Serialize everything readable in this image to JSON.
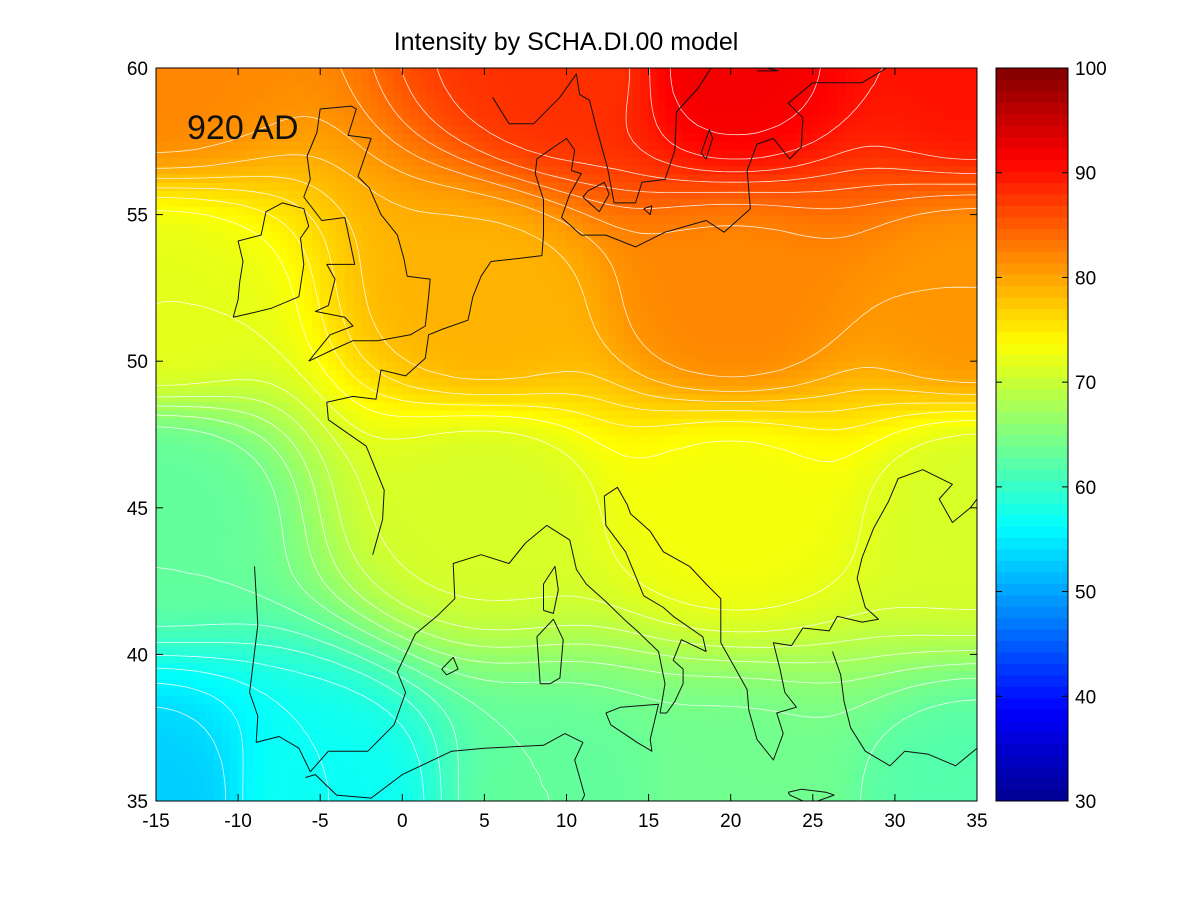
{
  "title": "Intensity by SCHA.DI.00 model",
  "annotation": "920 AD",
  "colors": {
    "jet": [
      "#00008f",
      "#0000ff",
      "#0080ff",
      "#00ffff",
      "#80ff80",
      "#ffff00",
      "#ff8000",
      "#ff0000",
      "#800000"
    ]
  },
  "chart_data": {
    "type": "heatmap",
    "title": "Intensity by SCHA.DI.00 model",
    "xlim": [
      -15,
      35
    ],
    "ylim": [
      35,
      60
    ],
    "x_ticks": [
      -15,
      -10,
      -5,
      0,
      5,
      10,
      15,
      20,
      25,
      30,
      35
    ],
    "y_ticks": [
      35,
      40,
      45,
      50,
      55,
      60
    ],
    "colorbar": {
      "range": [
        30,
        100
      ],
      "ticks": [
        30,
        40,
        50,
        60,
        70,
        80,
        90,
        100
      ]
    },
    "contour_step": 1.5,
    "field": {
      "description_points": [
        {
          "lon": -15,
          "lat": 35,
          "value": 53
        },
        {
          "lon": -5,
          "lat": 35,
          "value": 57
        },
        {
          "lon": 10,
          "lat": 35,
          "value": 63
        },
        {
          "lon": 20,
          "lat": 35,
          "value": 64
        },
        {
          "lon": 35,
          "lat": 35,
          "value": 62
        },
        {
          "lon": -15,
          "lat": 45,
          "value": 63
        },
        {
          "lon": 5,
          "lat": 45,
          "value": 71
        },
        {
          "lon": 20,
          "lat": 45,
          "value": 73
        },
        {
          "lon": 35,
          "lat": 45,
          "value": 71
        },
        {
          "lon": -15,
          "lat": 52,
          "value": 72
        },
        {
          "lon": 5,
          "lat": 52,
          "value": 79
        },
        {
          "lon": 20,
          "lat": 52,
          "value": 82
        },
        {
          "lon": 35,
          "lat": 52,
          "value": 81
        },
        {
          "lon": -15,
          "lat": 60,
          "value": 82
        },
        {
          "lon": 10,
          "lat": 60,
          "value": 88
        },
        {
          "lon": 20,
          "lat": 60,
          "value": 92
        },
        {
          "lon": 35,
          "lat": 60,
          "value": 90
        }
      ]
    },
    "coastlines": [
      {
        "name": "ireland",
        "lonlat": [
          [
            -10.3,
            51.5
          ],
          [
            -9.5,
            51.6
          ],
          [
            -8,
            51.8
          ],
          [
            -6.3,
            52.2
          ],
          [
            -6,
            53.3
          ],
          [
            -6.2,
            54.2
          ],
          [
            -5.7,
            54.6
          ],
          [
            -6,
            55.2
          ],
          [
            -7.3,
            55.4
          ],
          [
            -8.3,
            55.1
          ],
          [
            -8.6,
            54.3
          ],
          [
            -10,
            54.1
          ],
          [
            -9.7,
            53.4
          ],
          [
            -9.9,
            52.7
          ],
          [
            -10,
            52.1
          ],
          [
            -10.3,
            51.5
          ]
        ]
      },
      {
        "name": "great-britain",
        "lonlat": [
          [
            -5.7,
            50
          ],
          [
            -4.2,
            50.4
          ],
          [
            -3,
            50.7
          ],
          [
            -1.5,
            50.7
          ],
          [
            0.5,
            50.9
          ],
          [
            1.4,
            51.2
          ],
          [
            1.6,
            52.2
          ],
          [
            1.7,
            52.8
          ],
          [
            0.3,
            52.9
          ],
          [
            0.1,
            53.5
          ],
          [
            -0.3,
            54.3
          ],
          [
            -1.3,
            55
          ],
          [
            -2,
            55.9
          ],
          [
            -2.7,
            56.3
          ],
          [
            -1.9,
            57.6
          ],
          [
            -3.3,
            57.7
          ],
          [
            -2.8,
            58.6
          ],
          [
            -3.1,
            58.7
          ],
          [
            -5,
            58.6
          ],
          [
            -5.2,
            57.8
          ],
          [
            -5.8,
            57
          ],
          [
            -5.6,
            56.2
          ],
          [
            -6,
            55.6
          ],
          [
            -4.9,
            54.8
          ],
          [
            -3.5,
            54.9
          ],
          [
            -3.2,
            54.1
          ],
          [
            -2.9,
            53.3
          ],
          [
            -4.6,
            53.3
          ],
          [
            -4.1,
            52.8
          ],
          [
            -4.5,
            51.9
          ],
          [
            -5.3,
            51.7
          ],
          [
            -3.5,
            51.5
          ],
          [
            -3,
            51.2
          ],
          [
            -4.4,
            50.9
          ],
          [
            -5.7,
            50
          ]
        ]
      },
      {
        "name": "france-iberia-italy-balkans",
        "lonlat": [
          [
            -1.8,
            43.4
          ],
          [
            -1.2,
            44.6
          ],
          [
            -1.1,
            45.6
          ],
          [
            -2.2,
            47.1
          ],
          [
            -4.5,
            48
          ],
          [
            -4.6,
            48.6
          ],
          [
            -3,
            48.8
          ],
          [
            -1.6,
            48.7
          ],
          [
            -1.3,
            49.7
          ],
          [
            0.2,
            49.5
          ],
          [
            1.4,
            50.1
          ],
          [
            1.6,
            50.9
          ],
          [
            2.5,
            51.1
          ],
          [
            4,
            51.4
          ],
          [
            4.3,
            52.2
          ],
          [
            4.8,
            52.9
          ],
          [
            5.4,
            53.4
          ],
          [
            7,
            53.5
          ],
          [
            8.5,
            53.6
          ],
          [
            8.6,
            54.3
          ],
          [
            8.6,
            55.5
          ],
          [
            8.1,
            56.4
          ],
          [
            8.2,
            56.9
          ],
          [
            10,
            57.6
          ],
          [
            10.5,
            57.2
          ],
          [
            10.3,
            56.5
          ],
          [
            10.9,
            56.4
          ],
          [
            10.2,
            55.7
          ],
          [
            9.7,
            54.9
          ],
          [
            10.9,
            54.3
          ],
          [
            12.4,
            54.3
          ],
          [
            14.2,
            53.9
          ],
          [
            16,
            54.4
          ],
          [
            18.5,
            54.8
          ],
          [
            19.6,
            54.4
          ],
          [
            21.2,
            55.2
          ],
          [
            21,
            56.5
          ],
          [
            21.6,
            57.4
          ],
          [
            22.6,
            57.6
          ],
          [
            23.6,
            56.9
          ],
          [
            24.3,
            57.3
          ],
          [
            24.4,
            58.3
          ],
          [
            23.5,
            58.8
          ],
          [
            25,
            59.5
          ],
          [
            28,
            59.5
          ],
          [
            29.5,
            60
          ]
        ]
      },
      {
        "name": "scandinavia",
        "lonlat": [
          [
            5.5,
            59
          ],
          [
            6.5,
            58.1
          ],
          [
            8,
            58.1
          ],
          [
            9.6,
            59
          ],
          [
            10.6,
            59.8
          ],
          [
            10.8,
            59.1
          ],
          [
            11.4,
            58.9
          ],
          [
            11.8,
            58
          ],
          [
            12.5,
            56.6
          ],
          [
            12.9,
            55.4
          ],
          [
            14.2,
            55.4
          ],
          [
            14.6,
            56.1
          ],
          [
            16,
            56.2
          ],
          [
            16.6,
            57.2
          ],
          [
            16.7,
            58.5
          ],
          [
            18,
            59.3
          ],
          [
            18.8,
            60
          ]
        ]
      },
      {
        "name": "mediterranean-north",
        "lonlat": [
          [
            -9,
            43
          ],
          [
            -8.9,
            42
          ],
          [
            -8.8,
            41
          ],
          [
            -9.3,
            38.7
          ],
          [
            -8.8,
            37.9
          ],
          [
            -8.9,
            37
          ],
          [
            -7.5,
            37.2
          ],
          [
            -6.3,
            36.8
          ],
          [
            -5.6,
            36
          ],
          [
            -4.5,
            36.7
          ],
          [
            -2.1,
            36.7
          ],
          [
            -0.5,
            37.6
          ],
          [
            0.2,
            38.7
          ],
          [
            -0.3,
            39.4
          ],
          [
            0.8,
            40.7
          ],
          [
            2.1,
            41.3
          ],
          [
            3.2,
            41.9
          ],
          [
            3.1,
            43.1
          ],
          [
            4.8,
            43.4
          ],
          [
            6.5,
            43.1
          ],
          [
            7.5,
            43.8
          ],
          [
            8.8,
            44.4
          ],
          [
            10.2,
            43.9
          ],
          [
            10.6,
            42.9
          ],
          [
            11.2,
            42.4
          ],
          [
            12.4,
            41.8
          ],
          [
            13.5,
            41.2
          ],
          [
            14.3,
            40.8
          ],
          [
            15.6,
            40.1
          ],
          [
            16,
            39
          ],
          [
            15.7,
            38
          ],
          [
            16.1,
            38
          ],
          [
            16.6,
            38.4
          ],
          [
            17.1,
            39
          ],
          [
            17.1,
            39.5
          ],
          [
            16.5,
            39.8
          ],
          [
            17,
            40.5
          ],
          [
            18.5,
            40.1
          ],
          [
            18.3,
            40.6
          ],
          [
            16.5,
            41.3
          ],
          [
            15.9,
            41.6
          ],
          [
            14.7,
            42
          ],
          [
            13.6,
            43.5
          ],
          [
            12.4,
            44.4
          ],
          [
            12.3,
            45.4
          ],
          [
            13.1,
            45.7
          ],
          [
            13.7,
            45.1
          ],
          [
            13.9,
            44.8
          ],
          [
            15.1,
            44.2
          ],
          [
            15.9,
            43.5
          ],
          [
            17.5,
            43
          ],
          [
            18.5,
            42.4
          ],
          [
            19.4,
            41.9
          ],
          [
            19.4,
            40.4
          ],
          [
            20.2,
            39.6
          ],
          [
            21,
            38.8
          ],
          [
            21.1,
            38.1
          ],
          [
            21.6,
            37.1
          ],
          [
            22.6,
            36.4
          ],
          [
            23.2,
            37.3
          ],
          [
            22.8,
            38
          ],
          [
            24,
            38.2
          ],
          [
            23.3,
            38.7
          ],
          [
            23,
            39.5
          ],
          [
            22.6,
            40.4
          ],
          [
            23.7,
            40.3
          ],
          [
            24.4,
            40.9
          ],
          [
            26,
            40.8
          ],
          [
            26.5,
            41.3
          ],
          [
            28,
            41.1
          ],
          [
            29,
            41.2
          ],
          [
            28.2,
            41.6
          ],
          [
            27.7,
            42.6
          ],
          [
            28,
            43.3
          ],
          [
            28.7,
            44.3
          ],
          [
            29.6,
            45.2
          ],
          [
            30.2,
            46
          ],
          [
            31.7,
            46.3
          ],
          [
            33.5,
            45.8
          ],
          [
            32.7,
            45.3
          ],
          [
            33.5,
            44.5
          ],
          [
            34.6,
            45
          ],
          [
            35,
            45.3
          ]
        ]
      },
      {
        "name": "africa-north",
        "lonlat": [
          [
            -5.9,
            35.8
          ],
          [
            -5.3,
            35.9
          ],
          [
            -4,
            35.2
          ],
          [
            -1.9,
            35.1
          ],
          [
            0,
            35.9
          ],
          [
            3,
            36.7
          ],
          [
            5,
            36.8
          ],
          [
            8.6,
            36.9
          ],
          [
            9.9,
            37.3
          ],
          [
            11,
            37
          ],
          [
            10.5,
            36.4
          ],
          [
            11.1,
            35.2
          ],
          [
            10.3,
            34.3
          ],
          [
            10,
            34
          ],
          [
            10,
            35
          ]
        ]
      },
      {
        "name": "sardinia",
        "lonlat": [
          [
            8.4,
            39
          ],
          [
            8.2,
            40.6
          ],
          [
            9.2,
            41.2
          ],
          [
            9.8,
            40.5
          ],
          [
            9.6,
            39.2
          ],
          [
            9,
            39
          ],
          [
            8.4,
            39
          ]
        ]
      },
      {
        "name": "corsica",
        "lonlat": [
          [
            8.6,
            41.5
          ],
          [
            8.6,
            42.4
          ],
          [
            9.3,
            43
          ],
          [
            9.5,
            42.2
          ],
          [
            9.2,
            41.4
          ],
          [
            8.6,
            41.5
          ]
        ]
      },
      {
        "name": "sicily",
        "lonlat": [
          [
            12.4,
            38
          ],
          [
            13.3,
            38.2
          ],
          [
            15.6,
            38.3
          ],
          [
            15.1,
            37.1
          ],
          [
            15.2,
            36.7
          ],
          [
            14.3,
            37
          ],
          [
            12.7,
            37.6
          ],
          [
            12.4,
            38
          ]
        ]
      },
      {
        "name": "crete",
        "lonlat": [
          [
            23.5,
            35.3
          ],
          [
            24.3,
            35.4
          ],
          [
            25.8,
            35.3
          ],
          [
            26.3,
            35.2
          ],
          [
            24.8,
            34.9
          ],
          [
            23.6,
            35.2
          ],
          [
            23.5,
            35.3
          ]
        ]
      },
      {
        "name": "mallorca",
        "lonlat": [
          [
            2.4,
            39.5
          ],
          [
            3.1,
            39.9
          ],
          [
            3.4,
            39.5
          ],
          [
            2.7,
            39.3
          ],
          [
            2.4,
            39.5
          ]
        ]
      },
      {
        "name": "anatolia",
        "lonlat": [
          [
            26.2,
            40.1
          ],
          [
            26.7,
            39.3
          ],
          [
            26.9,
            38.4
          ],
          [
            27.3,
            37.5
          ],
          [
            28.2,
            36.7
          ],
          [
            29.7,
            36.2
          ],
          [
            30.6,
            36.7
          ],
          [
            32,
            36.6
          ],
          [
            33.7,
            36.2
          ],
          [
            35,
            36.8
          ]
        ]
      },
      {
        "name": "baltic-south-sweden-east",
        "lonlat": [
          [
            21.6,
            59.9
          ],
          [
            22.9,
            59.9
          ],
          [
            22.2,
            60
          ]
        ]
      },
      {
        "name": "gotland",
        "lonlat": [
          [
            18.2,
            57.1
          ],
          [
            18.5,
            56.9
          ],
          [
            18.9,
            57.6
          ],
          [
            18.7,
            57.9
          ],
          [
            18.2,
            57.1
          ]
        ]
      },
      {
        "name": "bornholm",
        "lonlat": [
          [
            14.7,
            55.2
          ],
          [
            15.1,
            55
          ],
          [
            15.2,
            55.3
          ],
          [
            14.7,
            55.2
          ]
        ]
      },
      {
        "name": "zealand",
        "lonlat": [
          [
            11,
            55.6
          ],
          [
            12,
            55.1
          ],
          [
            12.6,
            55.7
          ],
          [
            12.3,
            56.1
          ],
          [
            11.3,
            55.8
          ],
          [
            11,
            55.6
          ]
        ]
      }
    ]
  }
}
